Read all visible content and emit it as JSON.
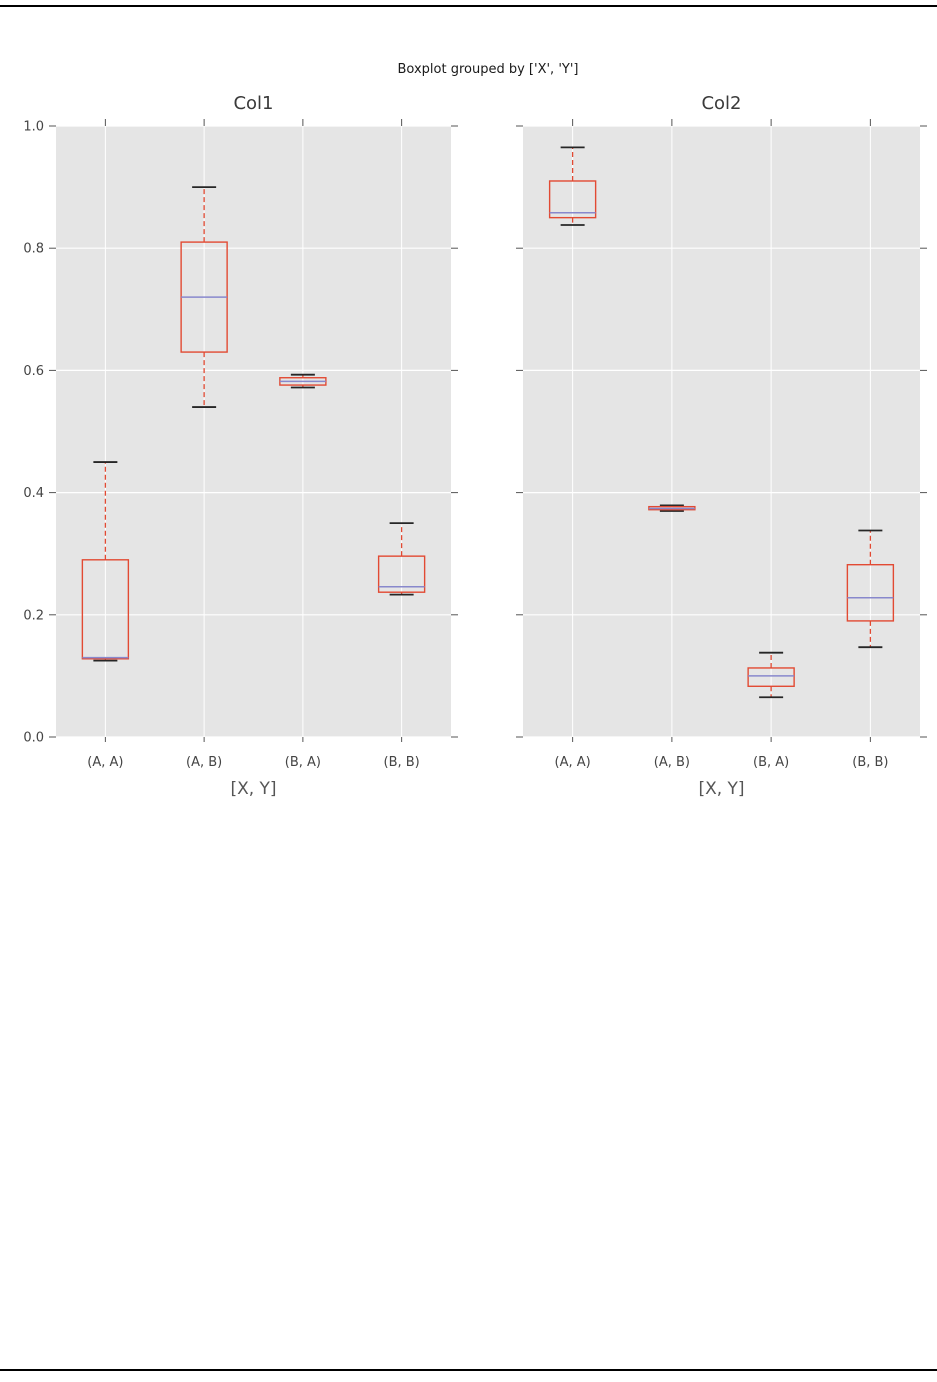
{
  "page": {
    "background": "#ffffff",
    "border_line_color": "#000000"
  },
  "figure": {
    "suptitle": "Boxplot grouped by ['X', 'Y']"
  },
  "chart_data": [
    {
      "type": "boxplot",
      "title": "Col1",
      "xlabel": "[X, Y]",
      "categories": [
        "(A, A)",
        "(A, B)",
        "(B, A)",
        "(B, B)"
      ],
      "ylim": [
        0.0,
        1.0
      ],
      "yticks": [
        0.0,
        0.2,
        0.4,
        0.6,
        0.8,
        1.0
      ],
      "ytick_labels": [
        "0.0",
        "0.2",
        "0.4",
        "0.6",
        "0.8",
        "1.0"
      ],
      "show_ytick_labels": true,
      "grid": true,
      "legend": false,
      "boxes": [
        {
          "category": "(A, A)",
          "whisker_low": 0.125,
          "q1": 0.128,
          "median": 0.13,
          "q3": 0.29,
          "whisker_high": 0.45
        },
        {
          "category": "(A, B)",
          "whisker_low": 0.54,
          "q1": 0.63,
          "median": 0.72,
          "q3": 0.81,
          "whisker_high": 0.9
        },
        {
          "category": "(B, A)",
          "whisker_low": 0.572,
          "q1": 0.576,
          "median": 0.582,
          "q3": 0.588,
          "whisker_high": 0.593
        },
        {
          "category": "(B, B)",
          "whisker_low": 0.233,
          "q1": 0.237,
          "median": 0.246,
          "q3": 0.296,
          "whisker_high": 0.35
        }
      ],
      "style": {
        "plot_background": "#e5e5e5",
        "gridline_color": "#ffffff",
        "box_color": "#e24a33",
        "median_color": "#8888cc",
        "cap_color": "#262626",
        "tick_color": "#555555",
        "tick_label_color": "#444444"
      }
    },
    {
      "type": "boxplot",
      "title": "Col2",
      "xlabel": "[X, Y]",
      "categories": [
        "(A, A)",
        "(A, B)",
        "(B, A)",
        "(B, B)"
      ],
      "ylim": [
        0.0,
        1.0
      ],
      "yticks": [
        0.0,
        0.2,
        0.4,
        0.6,
        0.8,
        1.0
      ],
      "ytick_labels": [
        "0.0",
        "0.2",
        "0.4",
        "0.6",
        "0.8",
        "1.0"
      ],
      "show_ytick_labels": false,
      "grid": true,
      "legend": false,
      "boxes": [
        {
          "category": "(A, A)",
          "whisker_low": 0.838,
          "q1": 0.85,
          "median": 0.858,
          "q3": 0.91,
          "whisker_high": 0.965
        },
        {
          "category": "(A, B)",
          "whisker_low": 0.37,
          "q1": 0.372,
          "median": 0.374,
          "q3": 0.377,
          "whisker_high": 0.379
        },
        {
          "category": "(B, A)",
          "whisker_low": 0.065,
          "q1": 0.083,
          "median": 0.1,
          "q3": 0.113,
          "whisker_high": 0.138
        },
        {
          "category": "(B, B)",
          "whisker_low": 0.147,
          "q1": 0.19,
          "median": 0.228,
          "q3": 0.282,
          "whisker_high": 0.338
        }
      ],
      "style": {
        "plot_background": "#e5e5e5",
        "gridline_color": "#ffffff",
        "box_color": "#e24a33",
        "median_color": "#8888cc",
        "cap_color": "#262626",
        "tick_color": "#555555",
        "tick_label_color": "#444444"
      }
    }
  ]
}
